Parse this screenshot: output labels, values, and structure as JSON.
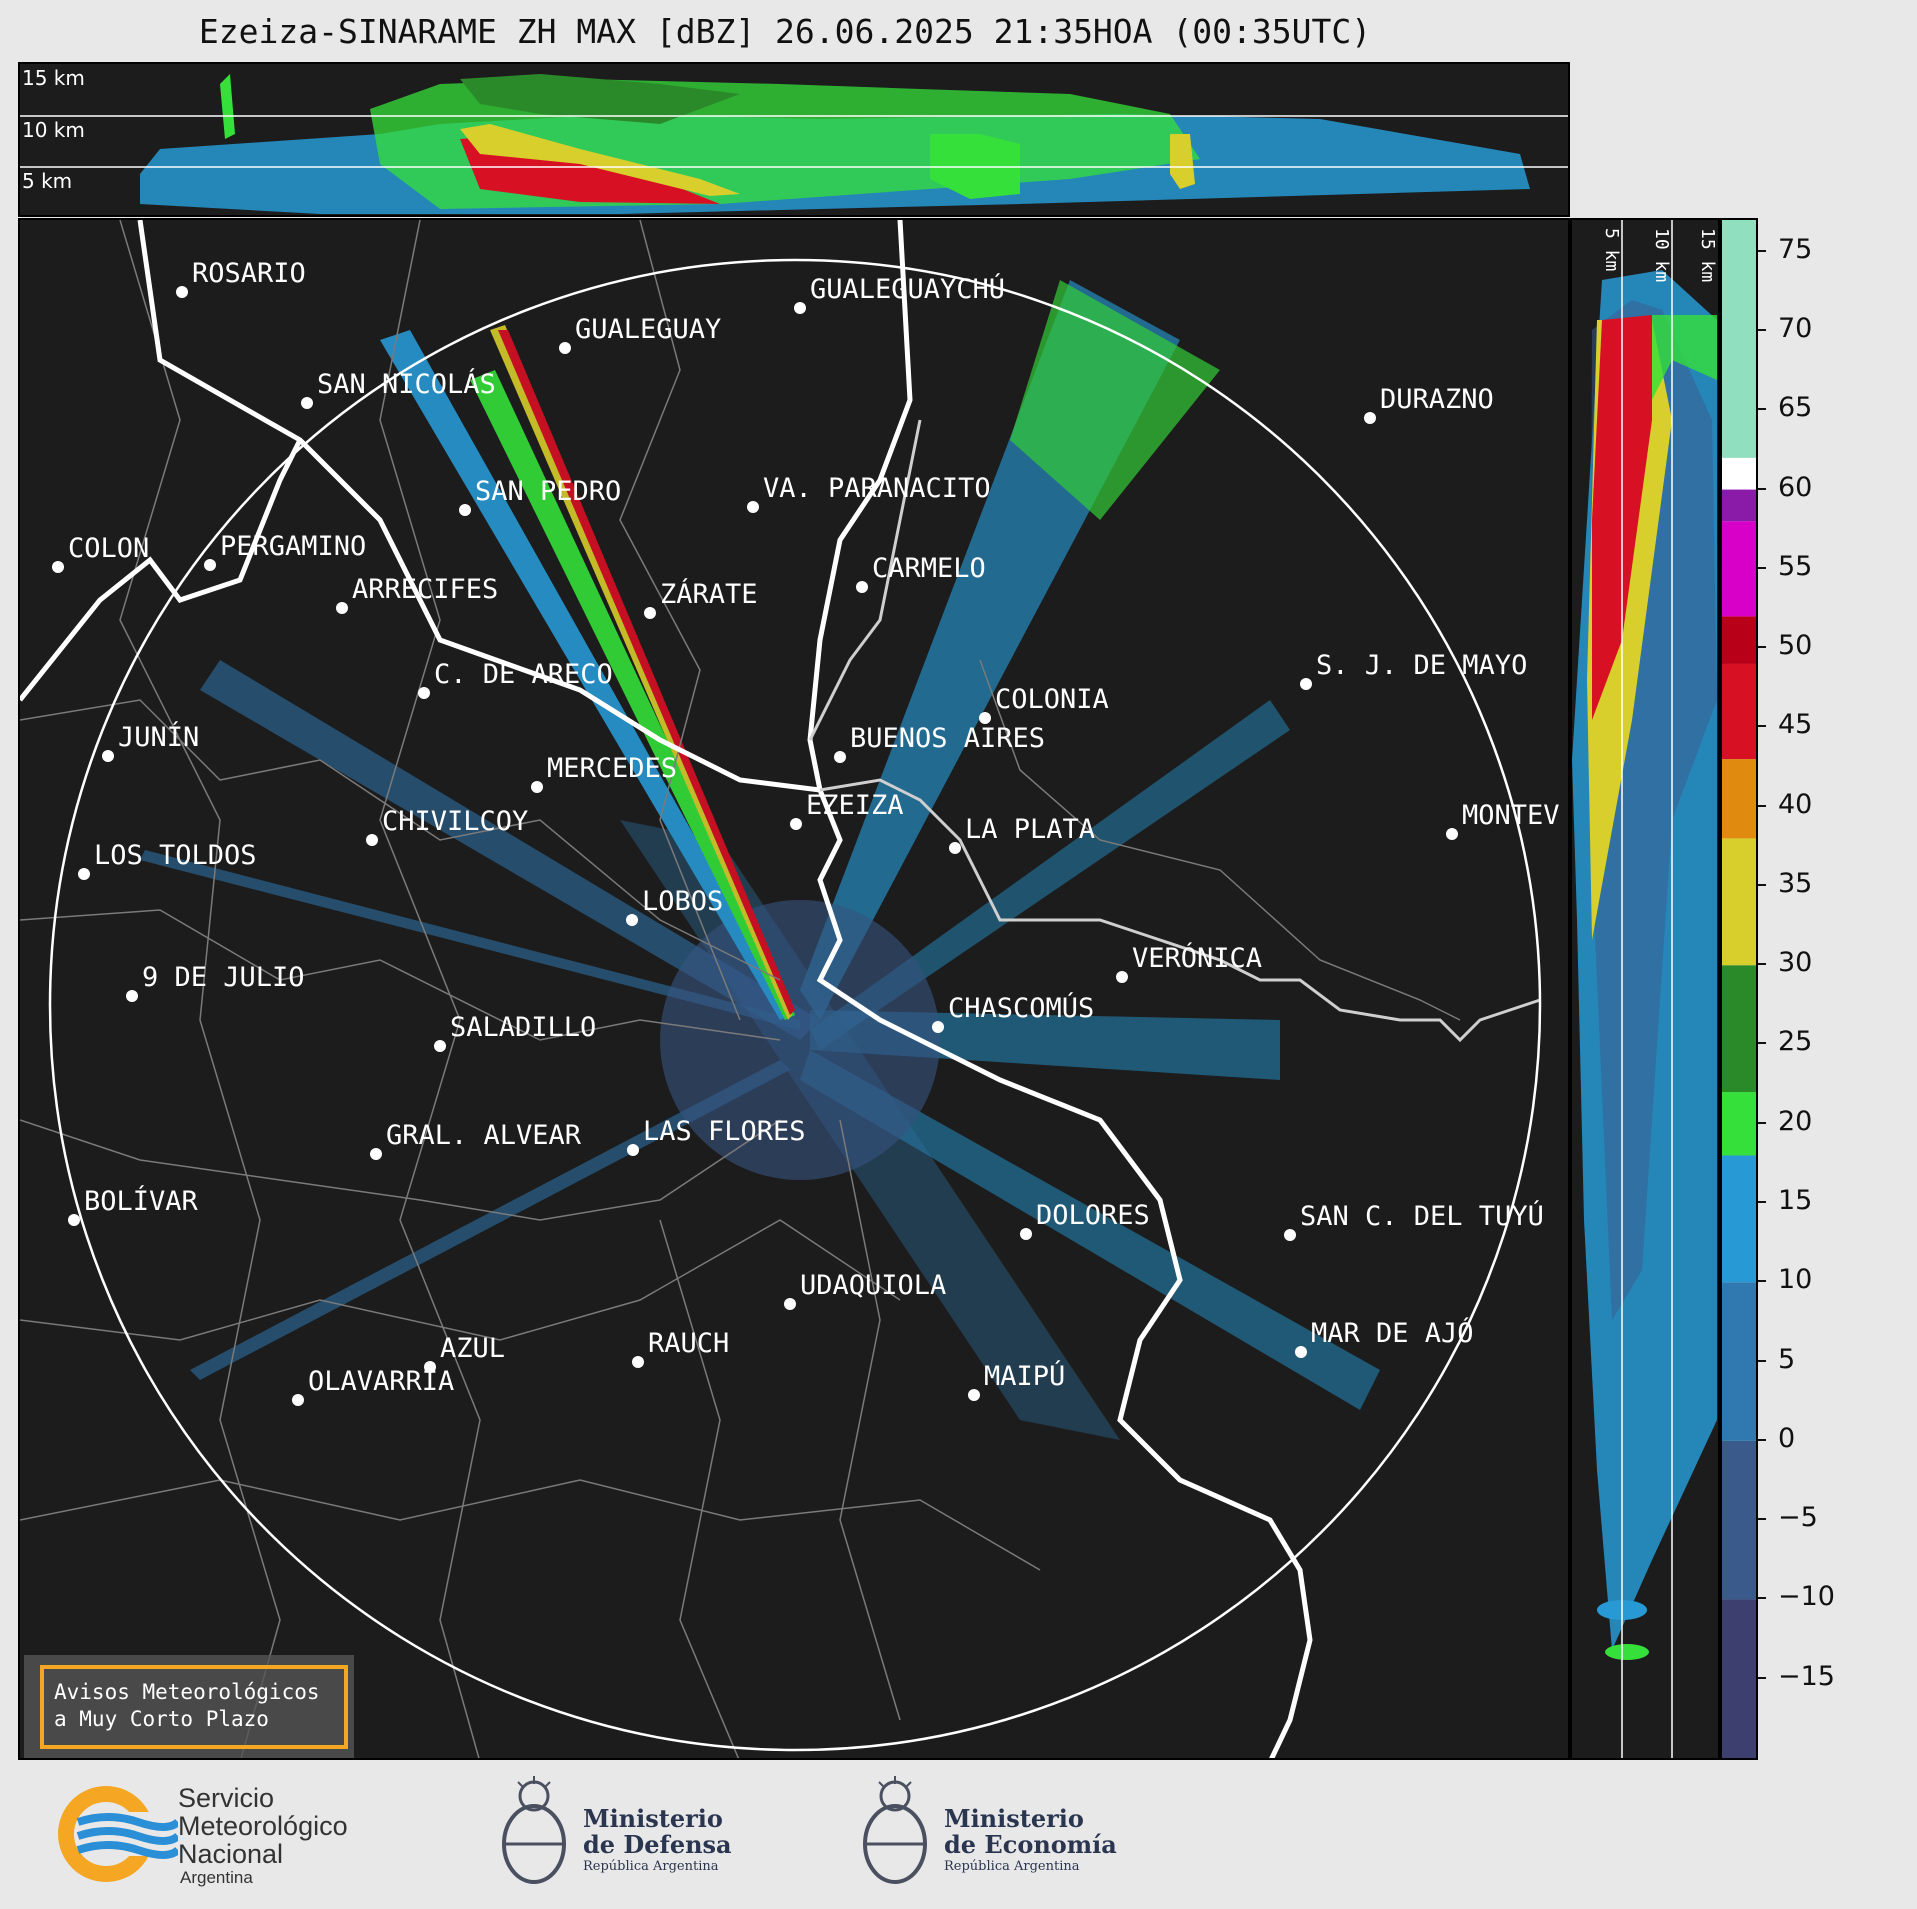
{
  "title": "Ezeiza-SINARAME ZH MAX [dBZ] 26.06.2025 21:35HOA (00:35UTC)",
  "height_labels": [
    "15 km",
    "10 km",
    "5 km"
  ],
  "cities": [
    {
      "name": "ROSARIO"
    },
    {
      "name": "GUALEGUAYCHÚ"
    },
    {
      "name": "GUALEGUAY"
    },
    {
      "name": "SAN NICOLÁS"
    },
    {
      "name": "DURAZNO"
    },
    {
      "name": "SAN PEDRO"
    },
    {
      "name": "VA. PARANACITO"
    },
    {
      "name": "COLON"
    },
    {
      "name": "PERGAMINO"
    },
    {
      "name": "CARMELO"
    },
    {
      "name": "ARRECIFES"
    },
    {
      "name": "ZÁRATE"
    },
    {
      "name": "S. J. DE MAYO"
    },
    {
      "name": "C. DE ARECO"
    },
    {
      "name": "COLONIA"
    },
    {
      "name": "JUNÍN"
    },
    {
      "name": "BUENOS AIRES"
    },
    {
      "name": "MERCEDES"
    },
    {
      "name": "EZEIZA"
    },
    {
      "name": "MONTEV"
    },
    {
      "name": "CHIVILCOY"
    },
    {
      "name": "LA PLATA"
    },
    {
      "name": "LOS TOLDOS"
    },
    {
      "name": "LOBOS"
    },
    {
      "name": "VERÓNICA"
    },
    {
      "name": "9 DE JULIO"
    },
    {
      "name": "CHASCOMÚS"
    },
    {
      "name": "SALADILLO"
    },
    {
      "name": "GRAL. ALVEAR"
    },
    {
      "name": "LAS FLORES"
    },
    {
      "name": "BOLÍVAR"
    },
    {
      "name": "DOLORES"
    },
    {
      "name": "SAN C. DEL TUYÚ"
    },
    {
      "name": "UDAQUIOLA"
    },
    {
      "name": "RAUCH"
    },
    {
      "name": "AZUL"
    },
    {
      "name": "MAR DE AJÓ"
    },
    {
      "name": "OLAVARRÍA"
    },
    {
      "name": "MAIPÚ"
    }
  ],
  "colorbar": {
    "ticks": [
      "75",
      "70",
      "65",
      "60",
      "55",
      "50",
      "45",
      "40",
      "35",
      "30",
      "25",
      "20",
      "15",
      "10",
      "5",
      "0",
      "−5",
      "−10",
      "−15"
    ],
    "range": [
      -20,
      77
    ],
    "colors": [
      {
        "from": -20,
        "to": -10,
        "color": "#3d3f6e"
      },
      {
        "from": -10,
        "to": 0,
        "color": "#3b5a8c"
      },
      {
        "from": 0,
        "to": 10,
        "color": "#2f79b0"
      },
      {
        "from": 10,
        "to": 18,
        "color": "#2799d4"
      },
      {
        "from": 18,
        "to": 22,
        "color": "#35e03a"
      },
      {
        "from": 22,
        "to": 30,
        "color": "#2a8a2a"
      },
      {
        "from": 30,
        "to": 38,
        "color": "#d8cf2c"
      },
      {
        "from": 38,
        "to": 43,
        "color": "#e08a10"
      },
      {
        "from": 43,
        "to": 49,
        "color": "#d81024"
      },
      {
        "from": 49,
        "to": 52,
        "color": "#b80018"
      },
      {
        "from": 52,
        "to": 58,
        "color": "#d800c8"
      },
      {
        "from": 58,
        "to": 60,
        "color": "#8a1aa8"
      },
      {
        "from": 60,
        "to": 62,
        "color": "#ffffff"
      },
      {
        "from": 62,
        "to": 77,
        "color": "#90e0c0"
      }
    ]
  },
  "warning_box": {
    "line1": "Avisos Meteorológicos",
    "line2": "a Muy Corto Plazo"
  },
  "logos": {
    "smn": {
      "line1": "Servicio",
      "line2": "Meteorológico",
      "line3": "Nacional",
      "line4": "Argentina"
    },
    "defensa": {
      "line1": "Ministerio",
      "line2": "de Defensa",
      "line3": "República Argentina"
    },
    "economia": {
      "line1": "Ministerio",
      "line2": "de Economía",
      "line3": "República Argentina"
    }
  },
  "colors": {
    "background": "#1c1c1c",
    "accent": "#f5a623",
    "coast": "#ffffff"
  }
}
